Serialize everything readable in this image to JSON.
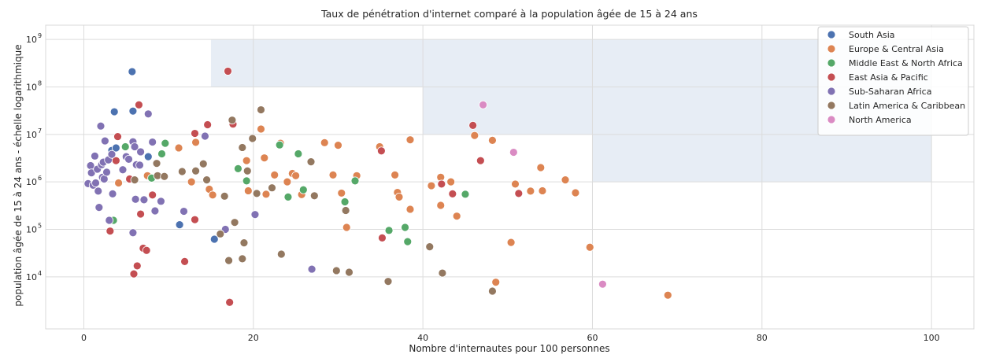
{
  "chart_data": {
    "type": "scatter",
    "title": "Taux de pénétration d'internet comparé à la population âgée de 15 à 24 ans",
    "xlabel": "Nombre d'internautes pour 100 personnes",
    "ylabel": "population âgée de 15 à 24 ans - échelle logarithmique",
    "xlim": [
      -4.5,
      105
    ],
    "ylim": [
      800,
      2000000000
    ],
    "yscale": "log",
    "grid": true,
    "legend_position": "top-right",
    "x_ticks": [
      0,
      20,
      40,
      60,
      80,
      100
    ],
    "x_tick_labels": [
      "0",
      "20",
      "40",
      "60",
      "80",
      "100"
    ],
    "y_ticks": [
      10000,
      100000,
      1000000,
      10000000,
      100000000,
      1000000000
    ],
    "y_tick_labels": [
      {
        "base": "10",
        "exp": "4"
      },
      {
        "base": "10",
        "exp": "5"
      },
      {
        "base": "10",
        "exp": "6"
      },
      {
        "base": "10",
        "exp": "7"
      },
      {
        "base": "10",
        "exp": "8"
      },
      {
        "base": "10",
        "exp": "9"
      }
    ],
    "highlight_regions": [
      {
        "x": [
          15,
          60
        ],
        "y": [
          100000000,
          1000000000
        ]
      },
      {
        "x": [
          40,
          60
        ],
        "y": [
          10000000,
          100000000
        ]
      },
      {
        "x": [
          60,
          100
        ],
        "y": [
          1000000,
          1000000000
        ]
      }
    ],
    "series": [
      {
        "name": "South Asia",
        "color": "#4c72b0",
        "points": [
          {
            "x": 5.7,
            "y": 210000000
          },
          {
            "x": 3.6,
            "y": 30000000
          },
          {
            "x": 5.8,
            "y": 31000000
          },
          {
            "x": 3.3,
            "y": 4600000
          },
          {
            "x": 3.8,
            "y": 5200000
          },
          {
            "x": 7.6,
            "y": 3400000
          },
          {
            "x": 11.3,
            "y": 125000
          },
          {
            "x": 15.4,
            "y": 62000
          }
        ]
      },
      {
        "name": "Europe & Central Asia",
        "color": "#dd8452",
        "points": [
          {
            "x": 4.1,
            "y": 950000
          },
          {
            "x": 7.5,
            "y": 1350000
          },
          {
            "x": 11.2,
            "y": 5200000
          },
          {
            "x": 12.7,
            "y": 1000000
          },
          {
            "x": 13.2,
            "y": 6800000
          },
          {
            "x": 14.8,
            "y": 700000
          },
          {
            "x": 15.2,
            "y": 530000
          },
          {
            "x": 19.2,
            "y": 2800000
          },
          {
            "x": 19.4,
            "y": 650000
          },
          {
            "x": 20.9,
            "y": 13000000
          },
          {
            "x": 21.3,
            "y": 3200000
          },
          {
            "x": 21.5,
            "y": 550000
          },
          {
            "x": 22.5,
            "y": 1400000
          },
          {
            "x": 23.2,
            "y": 6500000
          },
          {
            "x": 24.0,
            "y": 1000000
          },
          {
            "x": 24.6,
            "y": 1500000
          },
          {
            "x": 25.0,
            "y": 1350000
          },
          {
            "x": 25.7,
            "y": 540000
          },
          {
            "x": 28.4,
            "y": 6700000
          },
          {
            "x": 29.4,
            "y": 1400000
          },
          {
            "x": 30.0,
            "y": 5900000
          },
          {
            "x": 30.4,
            "y": 580000
          },
          {
            "x": 31.0,
            "y": 110000
          },
          {
            "x": 32.2,
            "y": 1350000
          },
          {
            "x": 34.9,
            "y": 5500000
          },
          {
            "x": 36.7,
            "y": 1400000
          },
          {
            "x": 37.0,
            "y": 600000
          },
          {
            "x": 37.2,
            "y": 480000
          },
          {
            "x": 38.5,
            "y": 7700000
          },
          {
            "x": 38.5,
            "y": 265000
          },
          {
            "x": 41.0,
            "y": 830000
          },
          {
            "x": 42.1,
            "y": 1250000
          },
          {
            "x": 42.1,
            "y": 320000
          },
          {
            "x": 43.3,
            "y": 1000000
          },
          {
            "x": 44.0,
            "y": 190000
          },
          {
            "x": 46.1,
            "y": 9500000
          },
          {
            "x": 48.2,
            "y": 7500000
          },
          {
            "x": 48.6,
            "y": 7700
          },
          {
            "x": 50.4,
            "y": 53000
          },
          {
            "x": 50.9,
            "y": 900000
          },
          {
            "x": 52.7,
            "y": 640000
          },
          {
            "x": 53.9,
            "y": 2000000
          },
          {
            "x": 54.1,
            "y": 650000
          },
          {
            "x": 56.8,
            "y": 1100000
          },
          {
            "x": 58.0,
            "y": 590000
          },
          {
            "x": 59.7,
            "y": 42000
          },
          {
            "x": 68.9,
            "y": 4100
          }
        ]
      },
      {
        "name": "Middle East & North Africa",
        "color": "#55a868",
        "points": [
          {
            "x": 3.5,
            "y": 155000
          },
          {
            "x": 4.9,
            "y": 5500000
          },
          {
            "x": 8.0,
            "y": 1200000
          },
          {
            "x": 9.2,
            "y": 3900000
          },
          {
            "x": 9.6,
            "y": 6500000
          },
          {
            "x": 18.2,
            "y": 1900000
          },
          {
            "x": 19.2,
            "y": 1050000
          },
          {
            "x": 23.1,
            "y": 6000000
          },
          {
            "x": 24.1,
            "y": 480000
          },
          {
            "x": 25.3,
            "y": 3900000
          },
          {
            "x": 25.9,
            "y": 680000
          },
          {
            "x": 30.8,
            "y": 380000
          },
          {
            "x": 32.0,
            "y": 1050000
          },
          {
            "x": 36.0,
            "y": 95000
          },
          {
            "x": 37.9,
            "y": 110000
          },
          {
            "x": 38.2,
            "y": 55000
          },
          {
            "x": 45.0,
            "y": 550000
          }
        ]
      },
      {
        "name": "East Asia & Pacific",
        "color": "#c44e52",
        "points": [
          {
            "x": 3.8,
            "y": 2800000
          },
          {
            "x": 4.0,
            "y": 9000000
          },
          {
            "x": 3.1,
            "y": 92000
          },
          {
            "x": 5.4,
            "y": 1150000
          },
          {
            "x": 5.9,
            "y": 11500
          },
          {
            "x": 6.3,
            "y": 17000
          },
          {
            "x": 6.5,
            "y": 42000000
          },
          {
            "x": 6.7,
            "y": 210000
          },
          {
            "x": 7.0,
            "y": 40000
          },
          {
            "x": 7.4,
            "y": 36000
          },
          {
            "x": 8.1,
            "y": 530000
          },
          {
            "x": 11.9,
            "y": 21000
          },
          {
            "x": 13.1,
            "y": 10500000
          },
          {
            "x": 13.1,
            "y": 160000
          },
          {
            "x": 14.6,
            "y": 16000000
          },
          {
            "x": 17.0,
            "y": 215000000
          },
          {
            "x": 17.2,
            "y": 2900
          },
          {
            "x": 17.6,
            "y": 16500000
          },
          {
            "x": 35.1,
            "y": 4500000
          },
          {
            "x": 35.2,
            "y": 66000
          },
          {
            "x": 42.2,
            "y": 900000
          },
          {
            "x": 43.5,
            "y": 560000
          },
          {
            "x": 45.9,
            "y": 15500000
          },
          {
            "x": 46.8,
            "y": 2800000
          },
          {
            "x": 51.3,
            "y": 570000
          }
        ]
      },
      {
        "name": "Sub-Saharan Africa",
        "color": "#8172b3",
        "points": [
          {
            "x": 0.5,
            "y": 920000
          },
          {
            "x": 0.8,
            "y": 2200000
          },
          {
            "x": 0.9,
            "y": 1550000
          },
          {
            "x": 1.1,
            "y": 850000
          },
          {
            "x": 1.3,
            "y": 3500000
          },
          {
            "x": 1.4,
            "y": 950000
          },
          {
            "x": 1.6,
            "y": 1850000
          },
          {
            "x": 1.7,
            "y": 640000
          },
          {
            "x": 1.8,
            "y": 290000
          },
          {
            "x": 2.0,
            "y": 15000000
          },
          {
            "x": 2.1,
            "y": 2300000
          },
          {
            "x": 2.2,
            "y": 1250000
          },
          {
            "x": 2.3,
            "y": 2600000
          },
          {
            "x": 2.4,
            "y": 1150000
          },
          {
            "x": 2.5,
            "y": 7300000
          },
          {
            "x": 2.7,
            "y": 1600000
          },
          {
            "x": 2.9,
            "y": 2900000
          },
          {
            "x": 3.0,
            "y": 155000
          },
          {
            "x": 3.3,
            "y": 3800000
          },
          {
            "x": 3.4,
            "y": 560000
          },
          {
            "x": 4.6,
            "y": 1800000
          },
          {
            "x": 5.0,
            "y": 3400000
          },
          {
            "x": 5.3,
            "y": 3000000
          },
          {
            "x": 5.8,
            "y": 7000000
          },
          {
            "x": 5.8,
            "y": 85000
          },
          {
            "x": 6.0,
            "y": 5500000
          },
          {
            "x": 6.1,
            "y": 430000
          },
          {
            "x": 6.2,
            "y": 2300000
          },
          {
            "x": 6.6,
            "y": 2250000
          },
          {
            "x": 6.7,
            "y": 4300000
          },
          {
            "x": 7.1,
            "y": 420000
          },
          {
            "x": 7.6,
            "y": 27000000
          },
          {
            "x": 8.1,
            "y": 6900000
          },
          {
            "x": 8.4,
            "y": 245000
          },
          {
            "x": 9.1,
            "y": 390000
          },
          {
            "x": 11.8,
            "y": 240000
          },
          {
            "x": 14.3,
            "y": 9200000
          },
          {
            "x": 16.7,
            "y": 100000
          },
          {
            "x": 20.2,
            "y": 205000
          },
          {
            "x": 26.9,
            "y": 14500
          }
        ]
      },
      {
        "name": "Latin America & Caribbean",
        "color": "#937860",
        "points": [
          {
            "x": 6.0,
            "y": 1100000
          },
          {
            "x": 8.6,
            "y": 2450000
          },
          {
            "x": 8.7,
            "y": 1350000
          },
          {
            "x": 9.5,
            "y": 1300000
          },
          {
            "x": 11.6,
            "y": 1650000
          },
          {
            "x": 13.2,
            "y": 1700000
          },
          {
            "x": 14.1,
            "y": 2400000
          },
          {
            "x": 14.5,
            "y": 1100000
          },
          {
            "x": 16.1,
            "y": 80000
          },
          {
            "x": 16.6,
            "y": 500000
          },
          {
            "x": 17.1,
            "y": 22000
          },
          {
            "x": 17.5,
            "y": 20000000
          },
          {
            "x": 17.8,
            "y": 140000
          },
          {
            "x": 18.7,
            "y": 5300000
          },
          {
            "x": 18.7,
            "y": 24000
          },
          {
            "x": 18.9,
            "y": 52000
          },
          {
            "x": 19.3,
            "y": 1700000
          },
          {
            "x": 19.9,
            "y": 8200000
          },
          {
            "x": 20.4,
            "y": 570000
          },
          {
            "x": 20.9,
            "y": 33000000
          },
          {
            "x": 22.2,
            "y": 750000
          },
          {
            "x": 23.3,
            "y": 30000
          },
          {
            "x": 26.8,
            "y": 2650000
          },
          {
            "x": 27.2,
            "y": 510000
          },
          {
            "x": 29.8,
            "y": 13500
          },
          {
            "x": 30.9,
            "y": 250000
          },
          {
            "x": 31.3,
            "y": 12500
          },
          {
            "x": 35.9,
            "y": 8000
          },
          {
            "x": 40.8,
            "y": 43000
          },
          {
            "x": 42.3,
            "y": 12000
          },
          {
            "x": 48.2,
            "y": 5000
          }
        ]
      },
      {
        "name": "North America",
        "color": "#da8bc3",
        "points": [
          {
            "x": 47.1,
            "y": 42000000
          },
          {
            "x": 50.7,
            "y": 4200000
          },
          {
            "x": 61.2,
            "y": 7000
          }
        ]
      }
    ]
  }
}
